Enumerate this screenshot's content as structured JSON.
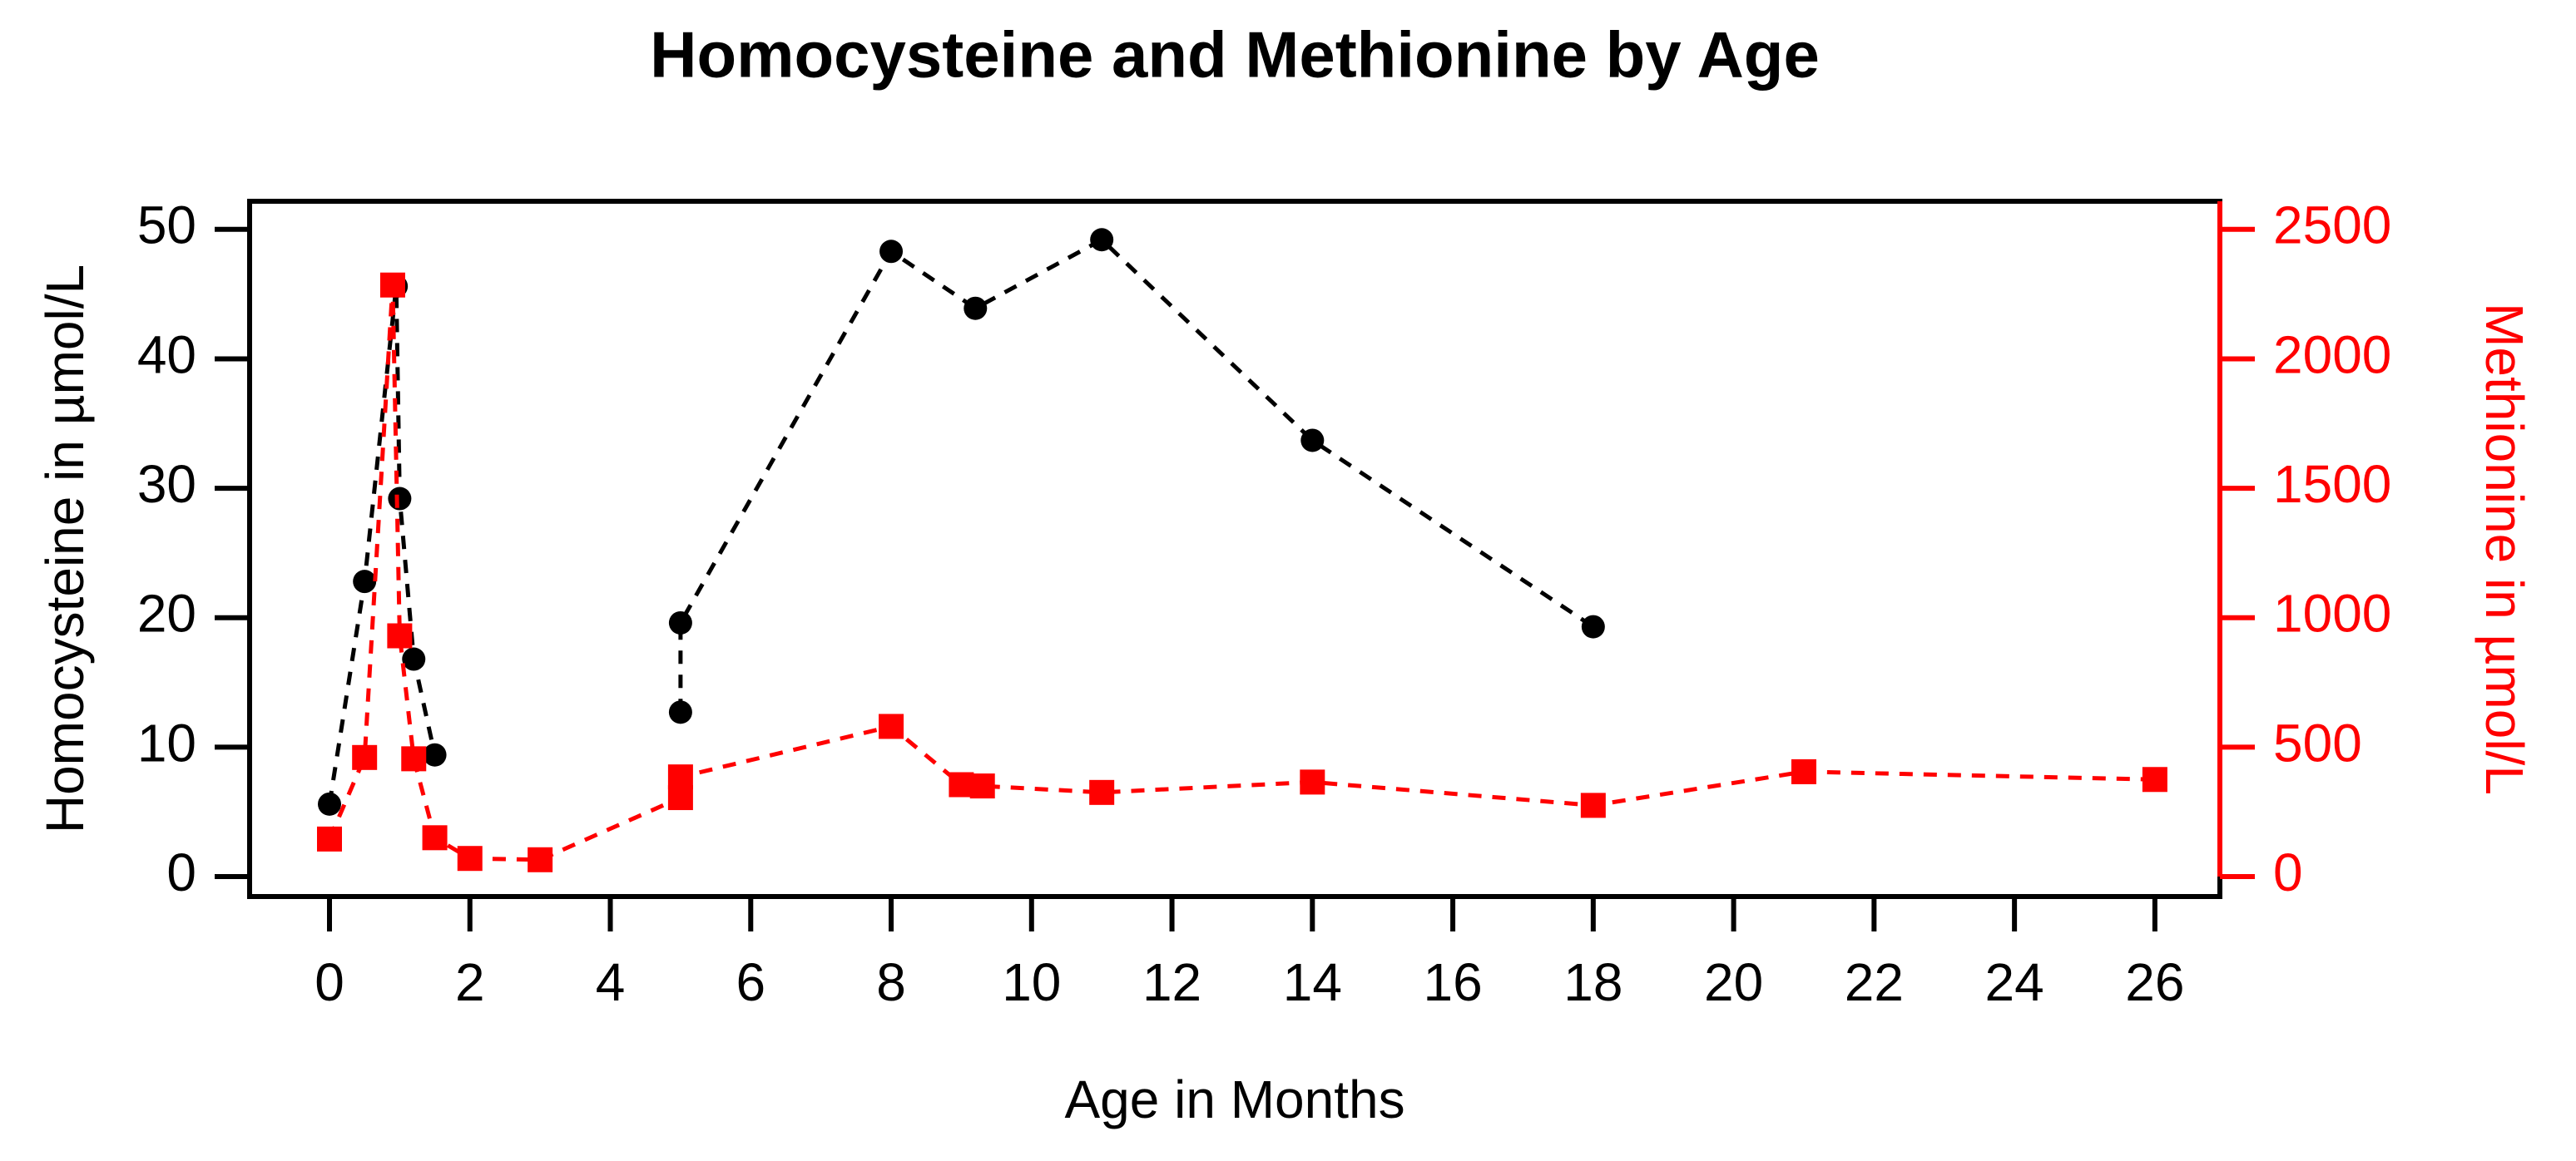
{
  "chart_data": {
    "type": "line",
    "title": "Homocysteine and Methionine by Age",
    "xlabel": "Age in Months",
    "ylabel_left": "Homocysteine in µmol/L",
    "ylabel_right": "Methionine in µmol/L",
    "x_ticks": [
      0,
      2,
      4,
      6,
      8,
      10,
      12,
      14,
      16,
      18,
      20,
      22,
      24,
      26
    ],
    "y_left_ticks": [
      0,
      10,
      20,
      30,
      40,
      50
    ],
    "y_right_ticks": [
      0,
      500,
      1000,
      1500,
      2000,
      2500
    ],
    "xlim": [
      -1.15,
      26.95
    ],
    "ylim_left": [
      -1.6,
      52.2
    ],
    "ylim_right": [
      -80,
      2610
    ],
    "grid": false,
    "legend": "none",
    "colors": {
      "homocysteine": "#000000",
      "methionine": "#ff0000",
      "frame": "#000000",
      "background": "#ffffff"
    },
    "series": [
      {
        "name": "Homocysteine",
        "axis": "left",
        "color": "#000000",
        "marker": "circle",
        "line_style": "dashed",
        "segments": [
          [
            [
              0,
              5.6
            ],
            [
              0.5,
              22.8
            ],
            [
              0.95,
              45.6
            ],
            [
              1,
              29.2
            ],
            [
              1.2,
              16.8
            ],
            [
              1.5,
              9.4
            ]
          ],
          [
            [
              5,
              12.7
            ],
            [
              5,
              19.6
            ],
            [
              8,
              48.3
            ],
            [
              9.2,
              43.9
            ],
            [
              11,
              49.2
            ],
            [
              14,
              33.7
            ],
            [
              18,
              19.3
            ]
          ]
        ]
      },
      {
        "name": "Methionine",
        "axis": "right",
        "color": "#ff0000",
        "marker": "square",
        "line_style": "dashed",
        "segments": [
          [
            [
              0,
              145
            ],
            [
              0.5,
              460
            ],
            [
              0.9,
              2285
            ],
            [
              1,
              930
            ],
            [
              1.2,
              455
            ],
            [
              1.5,
              150
            ],
            [
              2,
              70
            ],
            [
              3,
              65
            ],
            [
              5,
              305
            ],
            [
              5,
              385
            ],
            [
              8,
              580
            ],
            [
              9,
              355
            ],
            [
              9.3,
              350
            ],
            [
              11,
              325
            ],
            [
              14,
              365
            ],
            [
              18,
              275
            ],
            [
              21,
              405
            ],
            [
              26,
              375
            ]
          ]
        ]
      }
    ]
  }
}
